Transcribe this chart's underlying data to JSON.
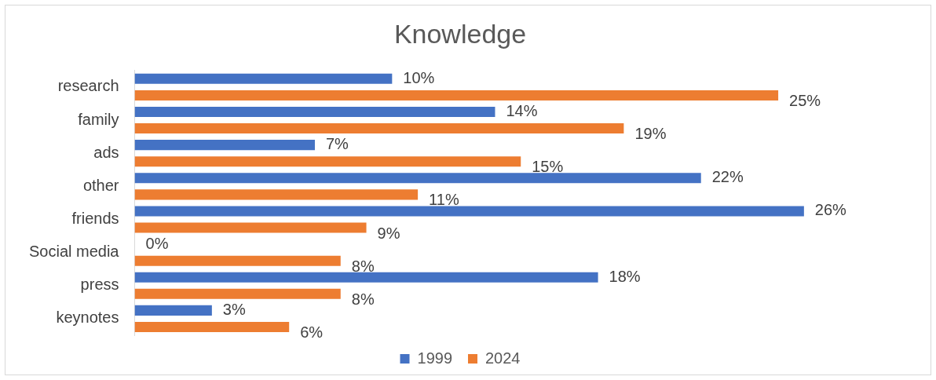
{
  "chart_data": {
    "type": "bar",
    "orientation": "horizontal",
    "title": "Knowledge",
    "legend": "bottom",
    "grid": false,
    "categories": [
      "research",
      "family",
      "ads",
      "other",
      "friends",
      "Social media",
      "press",
      "keynotes"
    ],
    "series": [
      {
        "name": "1999",
        "color": "#4472c4",
        "values": [
          10,
          14,
          7,
          22,
          26,
          0,
          18,
          3
        ],
        "value_labels": [
          "10%",
          "14%",
          "7%",
          "22%",
          "26%",
          "0%",
          "18%",
          "3%"
        ]
      },
      {
        "name": "2024",
        "color": "#ed7d31",
        "values": [
          25,
          19,
          15,
          11,
          9,
          8,
          8,
          6
        ],
        "value_labels": [
          "25%",
          "19%",
          "15%",
          "11%",
          "9%",
          "8%",
          "8%",
          "6%"
        ]
      }
    ]
  }
}
